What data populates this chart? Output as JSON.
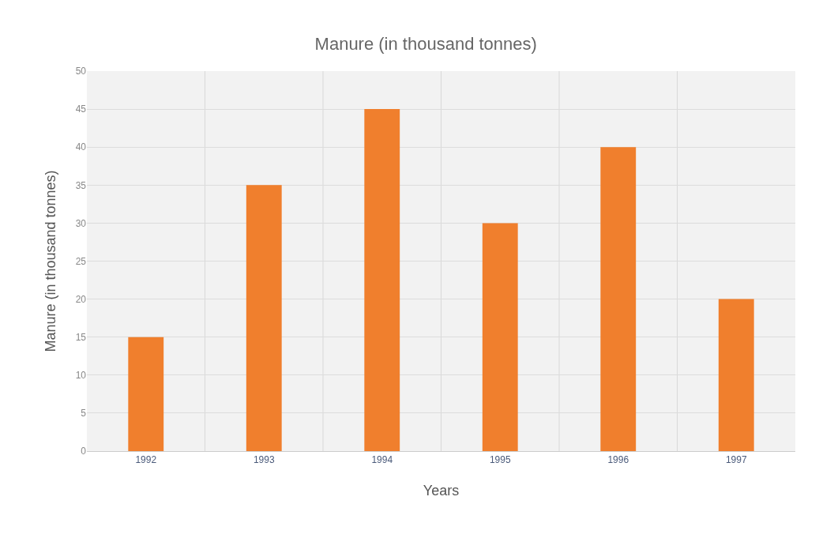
{
  "chart_data": {
    "type": "bar",
    "title": "Manure (in thousand tonnes)",
    "xlabel": "Years",
    "ylabel": "Manure (in thousand tonnes)",
    "categories": [
      "1992",
      "1993",
      "1994",
      "1995",
      "1996",
      "1997"
    ],
    "values": [
      15,
      35,
      45,
      30,
      40,
      20
    ],
    "color": "#f07f2d",
    "ylim": [
      0,
      50
    ],
    "yticks": [
      0,
      5,
      10,
      15,
      20,
      25,
      30,
      35,
      40,
      45,
      50
    ],
    "grid": true
  }
}
